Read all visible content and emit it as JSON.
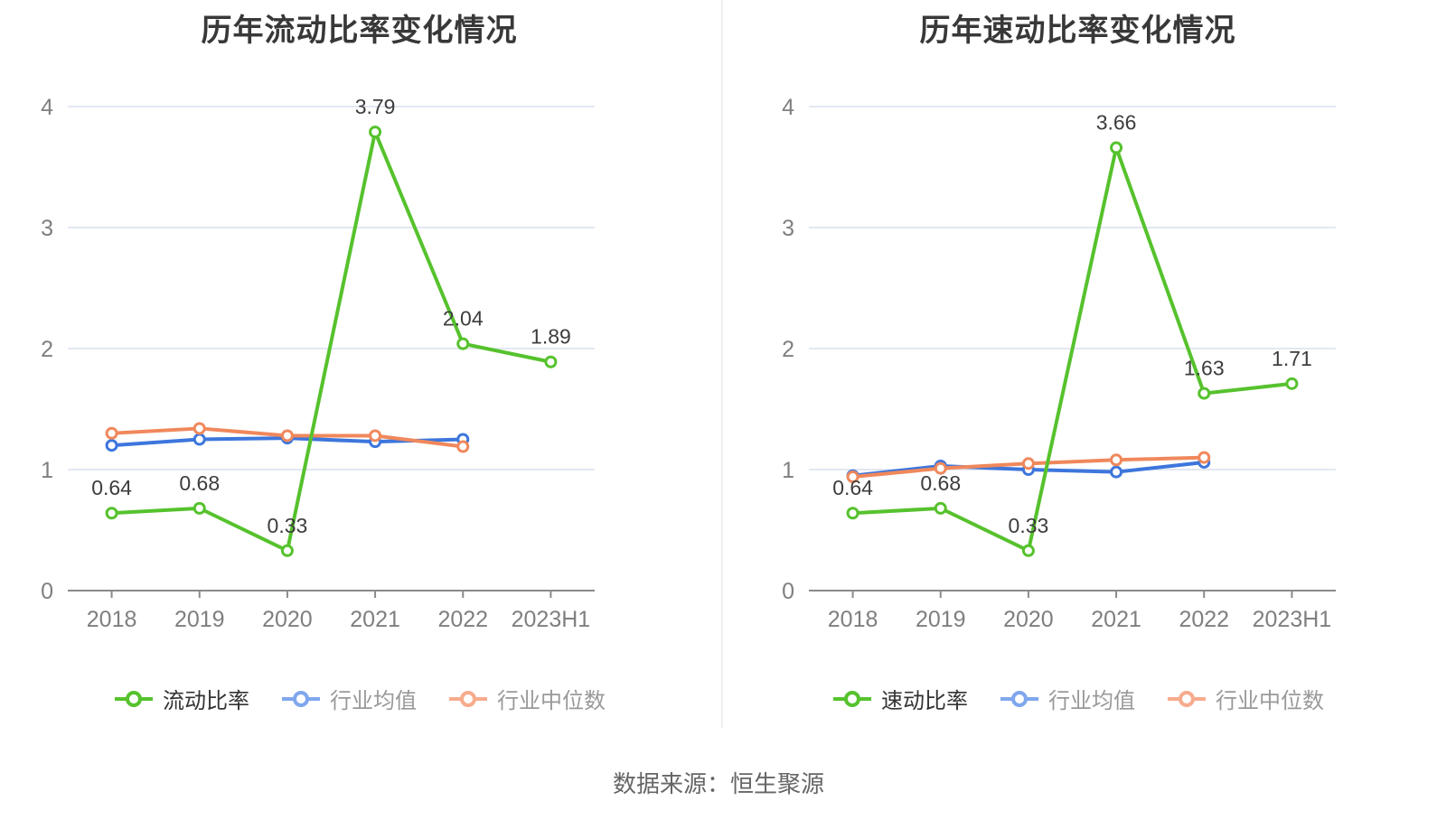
{
  "page": {
    "source_text": "数据来源：恒生聚源"
  },
  "colors": {
    "green": "#56C22D",
    "blue": "#3D76DC",
    "orange": "#F0885C",
    "legend_green": "#56C22D",
    "legend_blue": "#7FA7ED",
    "legend_orange": "#F7AB8D",
    "grid": "#E3E8F2",
    "axis": "#8A8A8A",
    "tick_label": "#7F7F7F",
    "value_label": "#3D3D3D",
    "title": "#383838",
    "source": "#666666"
  },
  "chart_data": [
    {
      "type": "line",
      "title": "历年流动比率变化情况",
      "categories": [
        "2018",
        "2019",
        "2020",
        "2021",
        "2022",
        "2023H1"
      ],
      "ylim": [
        0,
        4
      ],
      "yticks": [
        0,
        1,
        2,
        3,
        4
      ],
      "grid": true,
      "legend_position": "bottom",
      "series": [
        {
          "name": "流动比率",
          "color_key": "green",
          "point_labels": true,
          "values": [
            0.64,
            0.68,
            0.33,
            3.79,
            2.04,
            1.89
          ]
        },
        {
          "name": "行业均值",
          "color_key": "blue",
          "point_labels": false,
          "values": [
            1.2,
            1.25,
            1.26,
            1.23,
            1.25,
            null
          ]
        },
        {
          "name": "行业中位数",
          "color_key": "orange",
          "point_labels": false,
          "values": [
            1.3,
            1.34,
            1.28,
            1.28,
            1.19,
            null
          ]
        }
      ]
    },
    {
      "type": "line",
      "title": "历年速动比率变化情况",
      "categories": [
        "2018",
        "2019",
        "2020",
        "2021",
        "2022",
        "2023H1"
      ],
      "ylim": [
        0,
        4
      ],
      "yticks": [
        0,
        1,
        2,
        3,
        4
      ],
      "grid": true,
      "legend_position": "bottom",
      "series": [
        {
          "name": "速动比率",
          "color_key": "green",
          "point_labels": true,
          "values": [
            0.64,
            0.68,
            0.33,
            3.66,
            1.63,
            1.71
          ]
        },
        {
          "name": "行业均值",
          "color_key": "blue",
          "point_labels": false,
          "values": [
            0.95,
            1.03,
            1.0,
            0.98,
            1.06,
            null
          ]
        },
        {
          "name": "行业中位数",
          "color_key": "orange",
          "point_labels": false,
          "values": [
            0.94,
            1.01,
            1.05,
            1.08,
            1.1,
            null
          ]
        }
      ]
    }
  ]
}
